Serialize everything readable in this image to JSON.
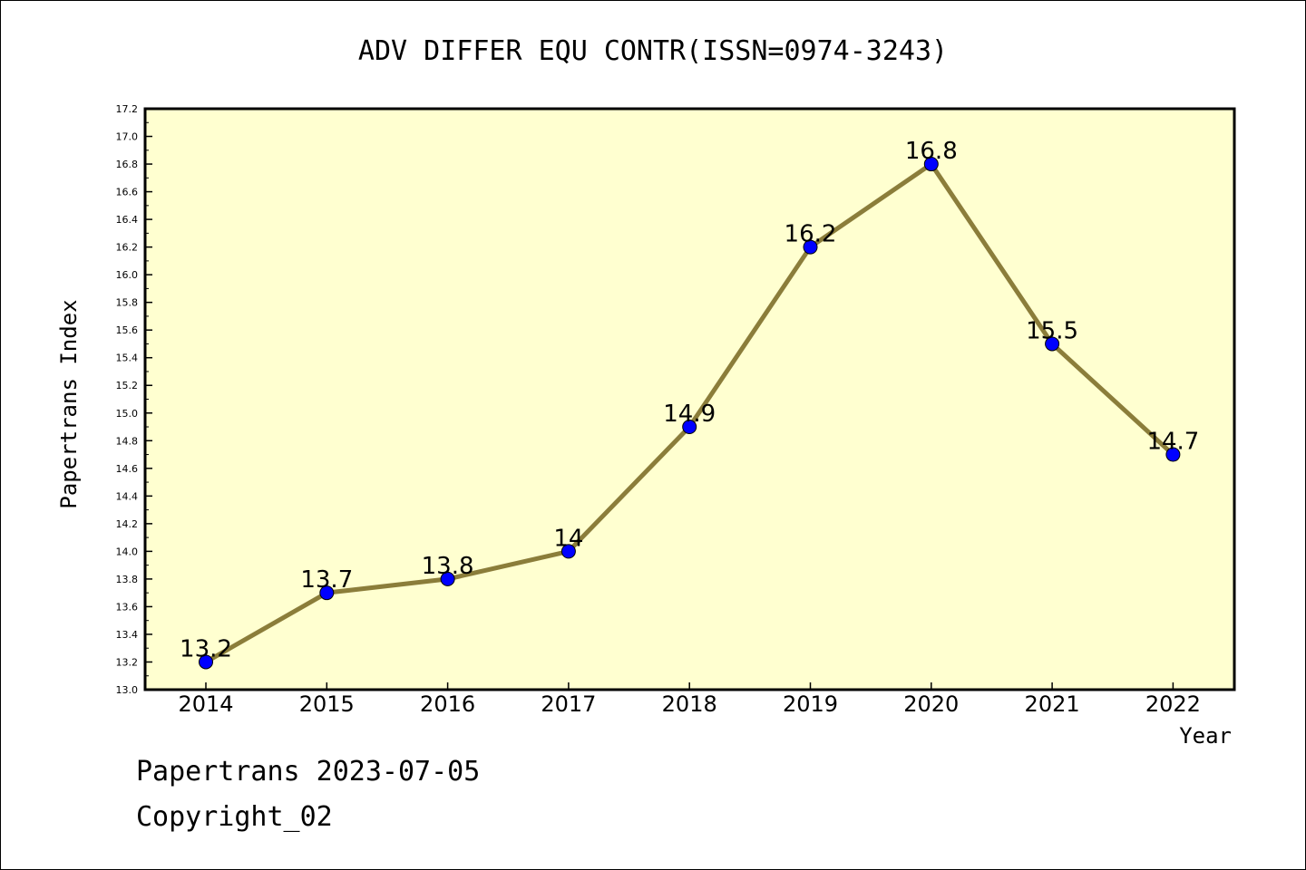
{
  "chart_data": {
    "type": "line",
    "title": "ADV DIFFER EQU CONTR(ISSN=0974-3243)",
    "xlabel": "Year",
    "ylabel": "Papertrans Index",
    "categories": [
      "2014",
      "2015",
      "2016",
      "2017",
      "2018",
      "2019",
      "2020",
      "2021",
      "2022"
    ],
    "series": [
      {
        "values": [
          13.2,
          13.7,
          13.8,
          14.0,
          14.9,
          16.2,
          16.8,
          15.5,
          14.7
        ],
        "labels": [
          "13.2",
          "13.7",
          "13.8",
          "14",
          "14.9",
          "16.2",
          "16.8",
          "15.5",
          "14.7"
        ]
      }
    ],
    "ylim": [
      13.0,
      17.2
    ],
    "yticks": [
      "13.0",
      "13.2",
      "13.4",
      "13.6",
      "13.8",
      "14.0",
      "14.2",
      "14.4",
      "14.6",
      "14.8",
      "15.0",
      "15.2",
      "15.4",
      "15.6",
      "15.8",
      "16.0",
      "16.2",
      "16.4",
      "16.6",
      "16.8",
      "17.0",
      "17.2"
    ],
    "grid": false,
    "colors": {
      "plot_background": "#ffffd0",
      "line": "#8b7d3a",
      "marker": "#0000ff"
    }
  },
  "footer": {
    "line1": "Papertrans 2023-07-05",
    "line2": "Copyright_02"
  }
}
